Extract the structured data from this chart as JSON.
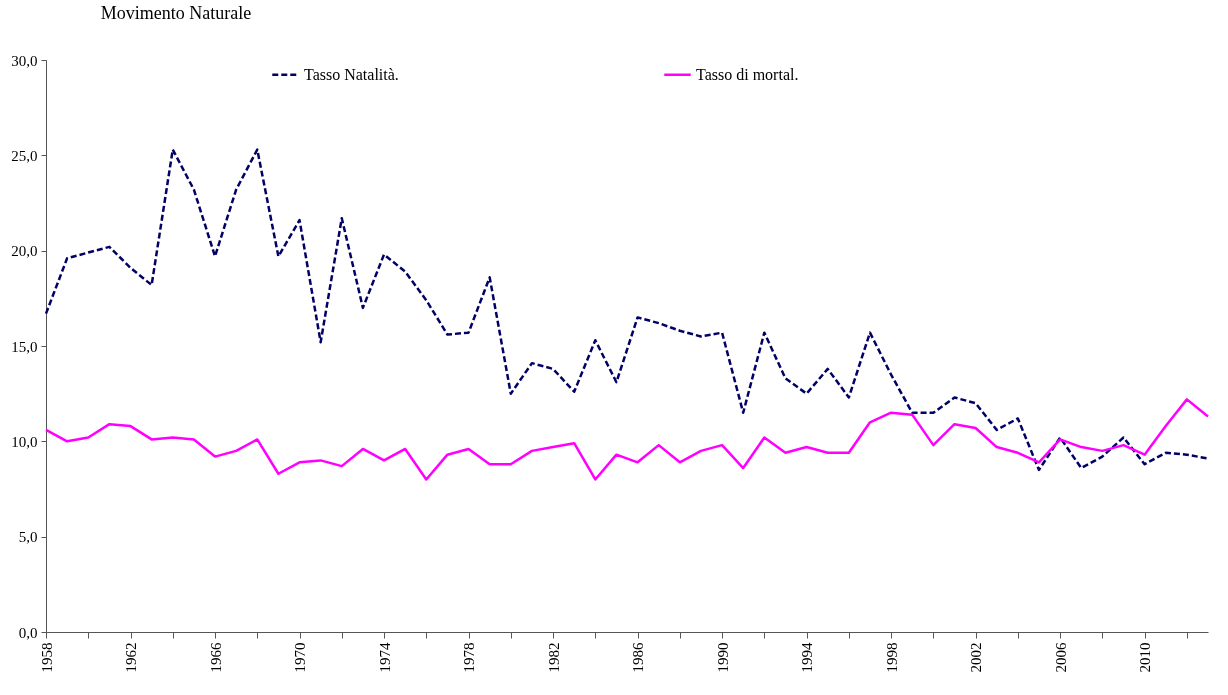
{
  "chart_data": {
    "type": "line",
    "title": "Movimento Naturale",
    "categories": [
      "1958",
      null,
      null,
      null,
      "1962",
      null,
      null,
      null,
      "1966",
      null,
      null,
      null,
      "1970",
      null,
      null,
      null,
      "1974",
      null,
      null,
      null,
      "1978",
      null,
      null,
      null,
      "1982",
      null,
      null,
      null,
      "1986",
      null,
      null,
      null,
      "1990",
      null,
      null,
      null,
      "1994",
      null,
      null,
      null,
      "1998",
      null,
      null,
      null,
      "2002",
      null,
      null,
      null,
      "2006",
      null,
      null,
      null,
      "2010",
      null,
      null,
      null
    ],
    "series": [
      {
        "name": "Tasso Natalità.",
        "color": "#000066",
        "line_style": "dashed",
        "values": [
          16.7,
          19.6,
          19.9,
          20.2,
          19.1,
          18.2,
          25.3,
          23.2,
          19.7,
          23.2,
          25.3,
          19.7,
          21.6,
          15.2,
          21.7,
          17.0,
          19.8,
          18.9,
          17.4,
          15.6,
          15.7,
          18.6,
          12.5,
          14.1,
          13.8,
          12.6,
          15.3,
          13.1,
          16.5,
          16.2,
          15.8,
          15.5,
          15.7,
          11.5,
          15.7,
          13.3,
          12.5,
          13.8,
          12.3,
          15.7,
          13.5,
          11.5,
          11.5,
          12.3,
          12.0,
          10.6,
          11.2,
          8.5,
          10.2,
          8.6,
          9.2,
          10.2,
          8.8,
          9.4,
          9.3,
          9.1
        ]
      },
      {
        "name": "Tasso di mortal.",
        "color": "#ff00ff",
        "line_style": "solid",
        "values": [
          10.6,
          10.0,
          10.2,
          10.9,
          10.8,
          10.1,
          10.2,
          10.1,
          9.2,
          9.5,
          10.1,
          8.3,
          8.9,
          9.0,
          8.7,
          9.6,
          9.0,
          9.6,
          8.0,
          9.3,
          9.6,
          8.8,
          8.8,
          9.5,
          9.7,
          9.9,
          8.0,
          9.3,
          8.9,
          9.8,
          8.9,
          9.5,
          9.8,
          8.6,
          10.2,
          9.4,
          9.7,
          9.4,
          9.4,
          11.0,
          11.5,
          11.4,
          9.8,
          10.9,
          10.7,
          9.7,
          9.4,
          8.9,
          10.1,
          9.7,
          9.5,
          9.8,
          9.3,
          10.8,
          12.2,
          11.3
        ]
      }
    ],
    "ylim": [
      0,
      30
    ],
    "yticks": [
      {
        "value": 0,
        "label": "0,0"
      },
      {
        "value": 5,
        "label": "5,0"
      },
      {
        "value": 10,
        "label": "10,0"
      },
      {
        "value": 15,
        "label": "15,0"
      },
      {
        "value": 20,
        "label": "20,0"
      },
      {
        "value": 25,
        "label": "25,0"
      },
      {
        "value": 30,
        "label": "30,0"
      }
    ],
    "grid": false,
    "legend": "top",
    "marker": "none"
  }
}
